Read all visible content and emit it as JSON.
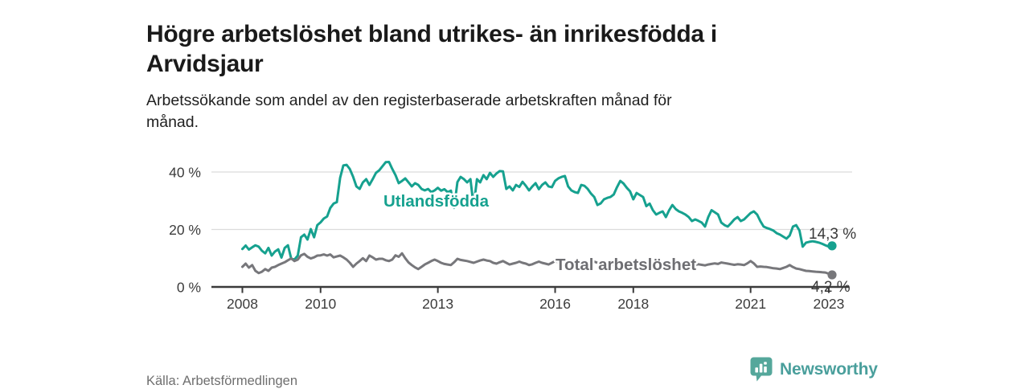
{
  "header": {
    "title": "Högre arbetslöshet bland utrikes- än inrikesfödda i\nArvidsjaur",
    "subtitle": "Arbetssökande som andel av den registerbaserade arbetskraften månad för\nmånad."
  },
  "footer": {
    "source": "Källa: Arbetsförmedlingen",
    "brand_name": "Newsworthy"
  },
  "colors": {
    "foreign_born_line": "#16a18f",
    "total_line": "#77777b",
    "axis": "#3a3a3a",
    "tick_text": "#3c3c3c",
    "grid": "#dcdcdc",
    "inline_label_total": "#6e6e72",
    "end_label_text": "#3a3a3a",
    "logo_bubble": "#55a79b",
    "logo_wordmark": "#4a9f9c"
  },
  "chart_data": {
    "type": "line",
    "title": "Högre arbetslöshet bland utrikes- än inrikesfödda i Arvidsjaur",
    "ylabel": "",
    "xlabel": "",
    "ylim": [
      0,
      45
    ],
    "grid": "horizontal",
    "legend_position": "inline-labels",
    "x": [
      "2008-01",
      "2008-02",
      "2008-03",
      "2008-04",
      "2008-05",
      "2008-06",
      "2008-07",
      "2008-08",
      "2008-09",
      "2008-10",
      "2008-11",
      "2008-12",
      "2009-01",
      "2009-02",
      "2009-03",
      "2009-04",
      "2009-05",
      "2009-06",
      "2009-07",
      "2009-08",
      "2009-09",
      "2009-10",
      "2009-11",
      "2009-12",
      "2010-01",
      "2010-02",
      "2010-03",
      "2010-04",
      "2010-05",
      "2010-06",
      "2010-07",
      "2010-08",
      "2010-09",
      "2010-10",
      "2010-11",
      "2010-12",
      "2011-01",
      "2011-02",
      "2011-03",
      "2011-04",
      "2011-05",
      "2011-06",
      "2011-07",
      "2011-08",
      "2011-09",
      "2011-10",
      "2011-11",
      "2011-12",
      "2012-01",
      "2012-02",
      "2012-03",
      "2012-04",
      "2012-05",
      "2012-06",
      "2012-07",
      "2012-08",
      "2012-09",
      "2012-10",
      "2012-11",
      "2012-12",
      "2013-01",
      "2013-02",
      "2013-03",
      "2013-04",
      "2013-05",
      "2013-06",
      "2013-07",
      "2013-08",
      "2013-09",
      "2013-10",
      "2013-11",
      "2013-12",
      "2014-01",
      "2014-02",
      "2014-03",
      "2014-04",
      "2014-05",
      "2014-06",
      "2014-07",
      "2014-08",
      "2014-09",
      "2014-10",
      "2014-11",
      "2014-12",
      "2015-01",
      "2015-02",
      "2015-03",
      "2015-04",
      "2015-05",
      "2015-06",
      "2015-07",
      "2015-08",
      "2015-09",
      "2015-10",
      "2015-11",
      "2015-12",
      "2016-01",
      "2016-02",
      "2016-03",
      "2016-04",
      "2016-05",
      "2016-06",
      "2016-07",
      "2016-08",
      "2016-09",
      "2016-10",
      "2016-11",
      "2016-12",
      "2017-01",
      "2017-02",
      "2017-03",
      "2017-04",
      "2017-05",
      "2017-06",
      "2017-07",
      "2017-08",
      "2017-09",
      "2017-10",
      "2017-11",
      "2017-12",
      "2018-01",
      "2018-02",
      "2018-03",
      "2018-04",
      "2018-05",
      "2018-06",
      "2018-07",
      "2018-08",
      "2018-09",
      "2018-10",
      "2018-11",
      "2018-12",
      "2019-01",
      "2019-02",
      "2019-03",
      "2019-04",
      "2019-05",
      "2019-06",
      "2019-07",
      "2019-08",
      "2019-09",
      "2019-10",
      "2019-11",
      "2019-12",
      "2020-01",
      "2020-02",
      "2020-03",
      "2020-04",
      "2020-05",
      "2020-06",
      "2020-07",
      "2020-08",
      "2020-09",
      "2020-10",
      "2020-11",
      "2020-12",
      "2021-01",
      "2021-02",
      "2021-03",
      "2021-04",
      "2021-05",
      "2021-06",
      "2021-07",
      "2021-08",
      "2021-09",
      "2021-10",
      "2021-11",
      "2021-12",
      "2022-01",
      "2022-02",
      "2022-03",
      "2022-04",
      "2022-05",
      "2022-06",
      "2022-07",
      "2022-08",
      "2022-09",
      "2022-10",
      "2022-11",
      "2022-12",
      "2023-01",
      "2023-02"
    ],
    "series": [
      {
        "name": "Utlandsfödda",
        "color": "#16a18f",
        "end_label": "14,3 %",
        "end_value": 14.3,
        "values": [
          13.2,
          14.4,
          13.0,
          13.8,
          14.5,
          14.0,
          12.6,
          11.7,
          13.6,
          10.9,
          12.3,
          13.1,
          10.2,
          13.6,
          14.5,
          9.8,
          9.5,
          10.9,
          17.3,
          18.2,
          16.5,
          20.1,
          17.3,
          21.5,
          22.5,
          23.8,
          24.5,
          27.5,
          29.0,
          29.5,
          38.0,
          42.3,
          42.5,
          41.0,
          38.3,
          35.0,
          34.1,
          36.4,
          37.5,
          35.5,
          37.5,
          39.7,
          40.6,
          42.0,
          43.4,
          43.5,
          41.1,
          38.9,
          36.1,
          36.9,
          37.8,
          36.4,
          35.0,
          36.1,
          35.5,
          34.1,
          33.6,
          34.1,
          33.0,
          33.6,
          34.5,
          33.5,
          34.0,
          33.0,
          33.5,
          27.5,
          36.5,
          38.3,
          37.5,
          36.4,
          37.5,
          28.0,
          37.5,
          36.4,
          38.9,
          37.5,
          39.7,
          38.3,
          39.5,
          40.3,
          40.2,
          34.1,
          35.0,
          33.6,
          35.5,
          34.8,
          36.6,
          35.2,
          33.6,
          35.0,
          36.1,
          34.0,
          35.5,
          36.4,
          35.0,
          34.7,
          36.9,
          37.8,
          38.3,
          38.6,
          35.0,
          33.6,
          33.0,
          32.7,
          35.5,
          35.2,
          34.1,
          32.5,
          31.3,
          28.5,
          29.1,
          30.5,
          31.0,
          31.3,
          32.2,
          34.7,
          36.9,
          36.0,
          34.5,
          33.3,
          30.5,
          32.7,
          32.0,
          31.3,
          28.1,
          29.0,
          26.7,
          25.2,
          25.8,
          26.3,
          24.3,
          26.7,
          28.5,
          27.1,
          26.3,
          25.8,
          25.2,
          24.3,
          22.9,
          23.5,
          23.0,
          22.4,
          21.0,
          24.3,
          26.7,
          26.0,
          25.2,
          22.4,
          21.5,
          21.0,
          22.2,
          23.5,
          24.3,
          22.9,
          23.5,
          24.6,
          25.7,
          26.3,
          25.2,
          22.9,
          21.0,
          20.5,
          20.1,
          19.6,
          18.7,
          18.2,
          17.5,
          16.8,
          17.9,
          21.0,
          21.5,
          19.6,
          14.0,
          15.4,
          15.7,
          15.9,
          15.7,
          15.4,
          15.0,
          14.5,
          14.0,
          14.3
        ]
      },
      {
        "name": "Total arbetslöshet",
        "color": "#77777b",
        "end_label": "4,2 %",
        "end_value": 4.2,
        "values": [
          7.0,
          8.1,
          6.7,
          7.6,
          5.6,
          4.8,
          5.3,
          6.2,
          5.6,
          6.7,
          7.0,
          7.6,
          8.1,
          8.6,
          9.3,
          9.9,
          9.0,
          9.5,
          11.0,
          11.5,
          10.5,
          9.9,
          10.3,
          10.9,
          11.0,
          11.3,
          10.9,
          11.3,
          10.3,
          10.6,
          10.9,
          10.3,
          9.5,
          8.4,
          7.0,
          8.1,
          9.0,
          10.0,
          9.0,
          10.9,
          10.3,
          9.5,
          9.8,
          9.8,
          9.3,
          9.0,
          9.5,
          11.0,
          10.5,
          11.7,
          10.0,
          8.5,
          7.6,
          6.8,
          6.2,
          7.0,
          7.8,
          8.4,
          9.0,
          9.5,
          9.0,
          8.4,
          8.0,
          7.8,
          7.6,
          8.6,
          9.8,
          9.4,
          9.2,
          9.0,
          8.7,
          8.4,
          8.8,
          9.2,
          9.5,
          9.2,
          9.0,
          8.4,
          8.1,
          8.6,
          9.0,
          8.4,
          7.8,
          8.1,
          8.4,
          8.8,
          8.4,
          8.1,
          7.6,
          7.9,
          8.4,
          8.8,
          8.4,
          8.1,
          7.8,
          8.4,
          9.0,
          8.6,
          8.1,
          7.8,
          7.6,
          7.9,
          8.2,
          8.0,
          7.8,
          8.1,
          8.4,
          8.6,
          8.8,
          8.4,
          8.1,
          7.8,
          7.6,
          7.4,
          7.7,
          8.0,
          8.3,
          8.1,
          7.9,
          8.2,
          8.4,
          8.1,
          7.8,
          7.6,
          7.3,
          7.1,
          7.4,
          7.7,
          7.5,
          7.3,
          7.6,
          7.9,
          8.1,
          7.9,
          7.7,
          7.5,
          7.3,
          7.1,
          7.4,
          7.7,
          7.9,
          7.7,
          7.5,
          7.8,
          8.0,
          8.2,
          8.0,
          8.5,
          8.3,
          8.1,
          7.9,
          7.7,
          7.9,
          7.8,
          7.6,
          8.2,
          9.0,
          8.2,
          7.0,
          7.1,
          7.0,
          6.9,
          6.7,
          6.5,
          6.4,
          6.2,
          6.6,
          7.0,
          7.6,
          6.9,
          6.4,
          6.2,
          5.9,
          5.6,
          5.5,
          5.4,
          5.3,
          5.2,
          5.1,
          5.0,
          4.6,
          4.2
        ]
      }
    ],
    "x_ticks": [
      {
        "label": "2008",
        "month_index": 0
      },
      {
        "label": "2010",
        "month_index": 24
      },
      {
        "label": "2013",
        "month_index": 60
      },
      {
        "label": "2016",
        "month_index": 96
      },
      {
        "label": "2018",
        "month_index": 120
      },
      {
        "label": "2021",
        "month_index": 156
      },
      {
        "label": "2023",
        "month_index": 180
      }
    ],
    "y_ticks": [
      {
        "label": "0 %",
        "value": 0
      },
      {
        "label": "20 %",
        "value": 20
      },
      {
        "label": "40 %",
        "value": 40
      }
    ]
  }
}
